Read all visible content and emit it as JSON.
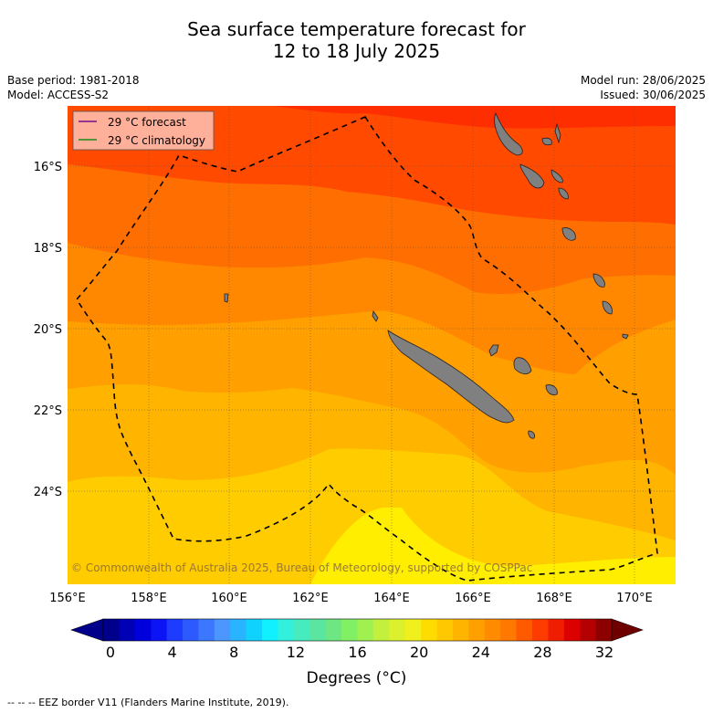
{
  "title_line1": "Sea surface temperature forecast for",
  "title_line2": "12 to 18 July 2025",
  "base_period": "Base period: 1981-2018",
  "model": "Model: ACCESS-S2",
  "model_run": "Model run: 28/06/2025",
  "issued": "Issued: 30/06/2025",
  "legend": {
    "forecast": "29 °C  forecast",
    "climatology": "29 °C  climatology",
    "forecast_color": "#7a0a8a",
    "climatology_color": "#1a8a1a"
  },
  "copyright": "© Commonwealth of Australia 2025, Bureau of Meteorology, supported by COSPPac",
  "lat_labels": [
    "16°S",
    "18°S",
    "20°S",
    "22°S",
    "24°S"
  ],
  "lon_labels": [
    "156°E",
    "158°E",
    "160°E",
    "162°E",
    "164°E",
    "166°E",
    "168°E",
    "170°E"
  ],
  "colorbar": {
    "ticks": [
      "0",
      "4",
      "8",
      "12",
      "16",
      "20",
      "24",
      "28",
      "32"
    ],
    "units": "Degrees (°C)",
    "colors": [
      "#00008a",
      "#0000b4",
      "#0000dc",
      "#0a14f5",
      "#1e3cff",
      "#2d5aff",
      "#3c78ff",
      "#4b96ff",
      "#28b4ff",
      "#10d2ff",
      "#10f0ff",
      "#32f0dc",
      "#46ebbe",
      "#5ae6a0",
      "#6ee682",
      "#82f064",
      "#a0f050",
      "#c3f03c",
      "#dcf02d",
      "#f0f01e",
      "#ffdc00",
      "#ffc800",
      "#ffb400",
      "#ffa000",
      "#ff8c00",
      "#ff7800",
      "#ff5a00",
      "#ff3c00",
      "#f01e00",
      "#dc0000",
      "#b40000",
      "#8c0000"
    ]
  },
  "footnote": "--  --  -- EEZ border V11 (Flanders Marine Institute, 2019)."
}
